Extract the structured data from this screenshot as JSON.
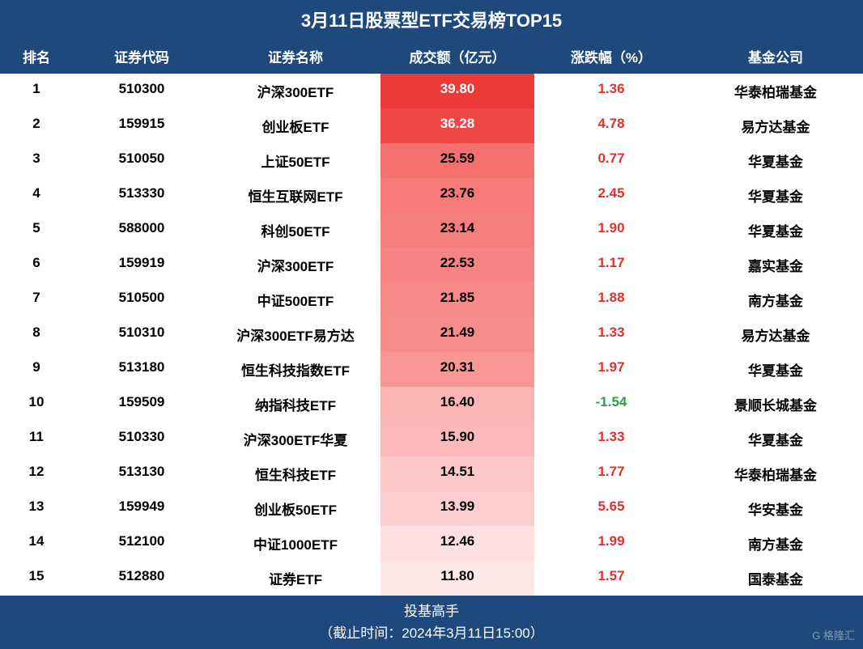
{
  "title": "3月11日股票型ETF交易榜TOP15",
  "columns": [
    "排名",
    "证券代码",
    "证券名称",
    "成交额（亿元）",
    "涨跌幅（%）",
    "基金公司"
  ],
  "positive_color": "#e03131",
  "negative_color": "#2f9e44",
  "header_bg": "#1f497d",
  "header_fg": "#ffffff",
  "volume_cell_bg_gradient_note": "heatmap by volume, high=deep red, low=faint pink",
  "rows": [
    {
      "rank": "1",
      "code": "510300",
      "name": "沪深300ETF",
      "volume": "39.80",
      "change": "1.36",
      "company": "华泰柏瑞基金",
      "vol_bg": "#ee3a37",
      "vol_fg": "#ffffff"
    },
    {
      "rank": "2",
      "code": "159915",
      "name": "创业板ETF",
      "volume": "36.28",
      "change": "4.78",
      "company": "易方达基金",
      "vol_bg": "#f04745",
      "vol_fg": "#ffffff"
    },
    {
      "rank": "3",
      "code": "510050",
      "name": "上证50ETF",
      "volume": "25.59",
      "change": "0.77",
      "company": "华夏基金",
      "vol_bg": "#f4706e",
      "vol_fg": "#000000"
    },
    {
      "rank": "4",
      "code": "513330",
      "name": "恒生互联网ETF",
      "volume": "23.76",
      "change": "2.45",
      "company": "华夏基金",
      "vol_bg": "#f57a78",
      "vol_fg": "#000000"
    },
    {
      "rank": "5",
      "code": "588000",
      "name": "科创50ETF",
      "volume": "23.14",
      "change": "1.90",
      "company": "华夏基金",
      "vol_bg": "#f57f7d",
      "vol_fg": "#000000"
    },
    {
      "rank": "6",
      "code": "159919",
      "name": "沪深300ETF",
      "volume": "22.53",
      "change": "1.17",
      "company": "嘉实基金",
      "vol_bg": "#f68482",
      "vol_fg": "#000000"
    },
    {
      "rank": "7",
      "code": "510500",
      "name": "中证500ETF",
      "volume": "21.85",
      "change": "1.88",
      "company": "南方基金",
      "vol_bg": "#f78987",
      "vol_fg": "#000000"
    },
    {
      "rank": "8",
      "code": "510310",
      "name": "沪深300ETF易方达",
      "volume": "21.49",
      "change": "1.33",
      "company": "易方达基金",
      "vol_bg": "#f78d8b",
      "vol_fg": "#000000"
    },
    {
      "rank": "9",
      "code": "513180",
      "name": "恒生科技指数ETF",
      "volume": "20.31",
      "change": "1.97",
      "company": "华夏基金",
      "vol_bg": "#f89694",
      "vol_fg": "#000000"
    },
    {
      "rank": "10",
      "code": "159509",
      "name": "纳指科技ETF",
      "volume": "16.40",
      "change": "-1.54",
      "company": "景顺长城基金",
      "vol_bg": "#fab4b3",
      "vol_fg": "#000000"
    },
    {
      "rank": "11",
      "code": "510330",
      "name": "沪深300ETF华夏",
      "volume": "15.90",
      "change": "1.33",
      "company": "华夏基金",
      "vol_bg": "#fbbab9",
      "vol_fg": "#000000"
    },
    {
      "rank": "12",
      "code": "513130",
      "name": "恒生科技ETF",
      "volume": "14.51",
      "change": "1.77",
      "company": "华泰柏瑞基金",
      "vol_bg": "#fcc9c8",
      "vol_fg": "#000000"
    },
    {
      "rank": "13",
      "code": "159949",
      "name": "创业板50ETF",
      "volume": "13.99",
      "change": "5.65",
      "company": "华安基金",
      "vol_bg": "#fccfce",
      "vol_fg": "#000000"
    },
    {
      "rank": "14",
      "code": "512100",
      "name": "中证1000ETF",
      "volume": "12.46",
      "change": "1.99",
      "company": "南方基金",
      "vol_bg": "#fde0df",
      "vol_fg": "#000000"
    },
    {
      "rank": "15",
      "code": "512880",
      "name": "证券ETF",
      "volume": "11.80",
      "change": "1.57",
      "company": "国泰基金",
      "vol_bg": "#fde8e8",
      "vol_fg": "#000000"
    }
  ],
  "footer_line1": "投基高手",
  "footer_line2": "（截止时间：2024年3月11日15:00）",
  "watermark": "G 格隆汇"
}
